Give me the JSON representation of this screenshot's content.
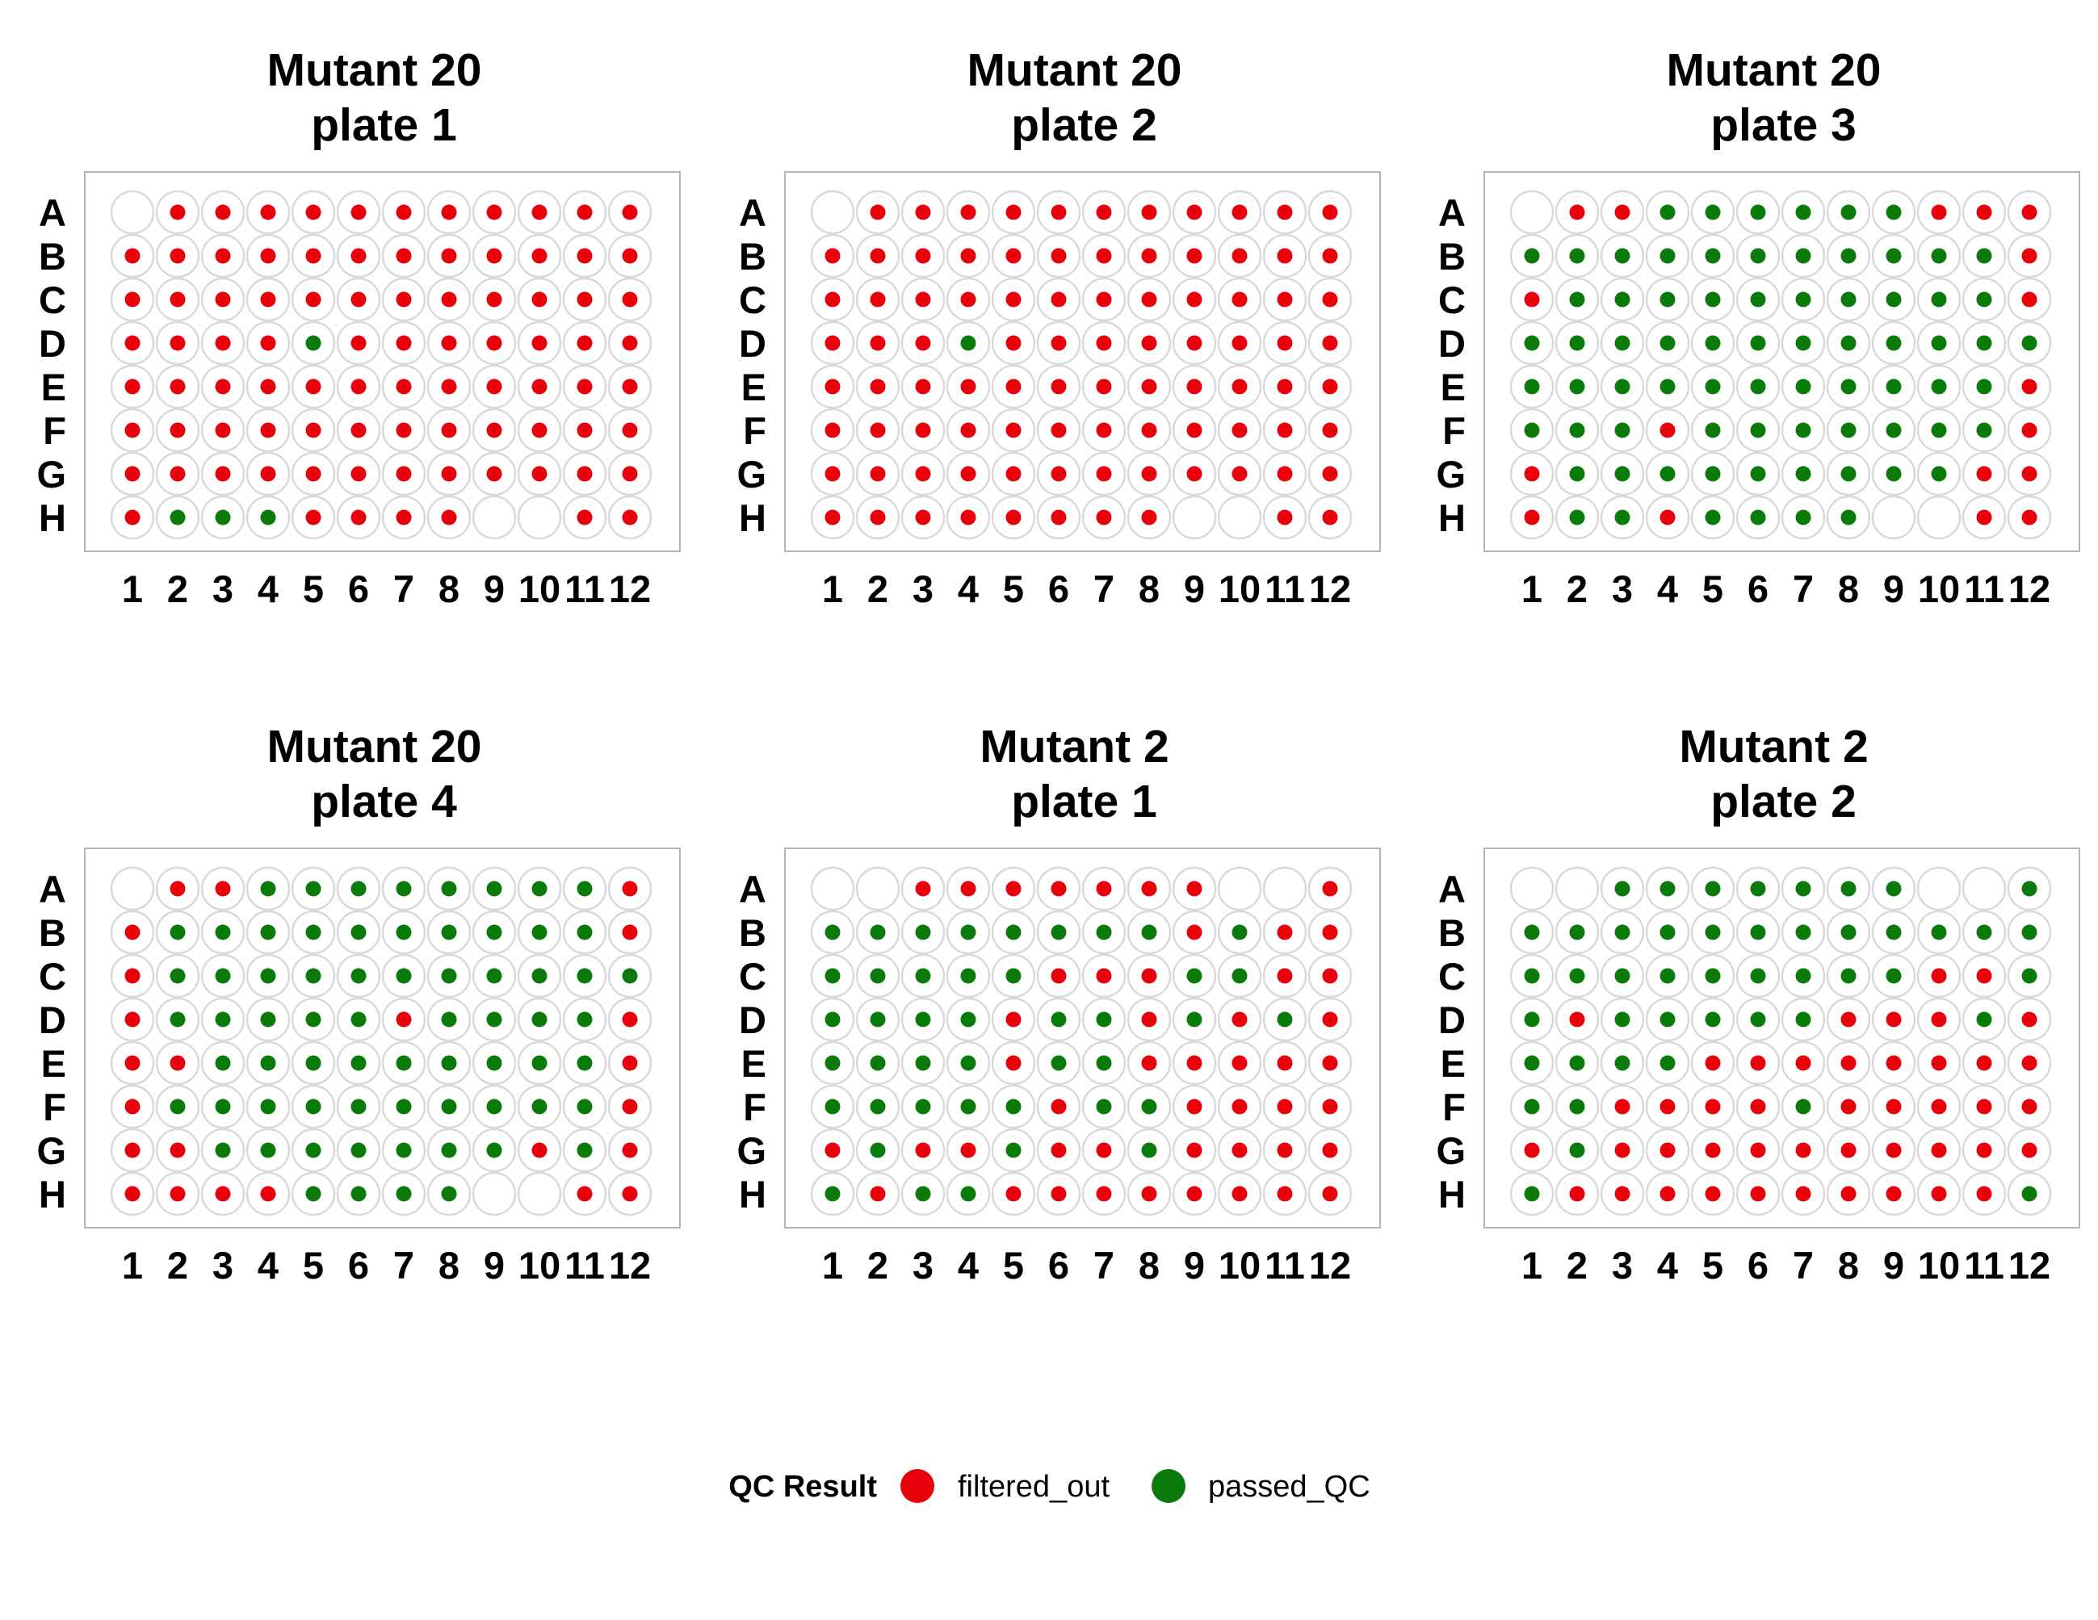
{
  "colors": {
    "filtered_out": "#e8000b",
    "passed_QC": "#0a7a0a",
    "well_outline": "#d9d9d9",
    "panel_border": "#b3b3b3"
  },
  "legend": {
    "title": "QC Result",
    "items": [
      {
        "key": "F",
        "label": "filtered_out"
      },
      {
        "key": "P",
        "label": "passed_QC"
      }
    ]
  },
  "chart_data": [
    {
      "type": "plate-map",
      "title_line1": "Mutant 20",
      "title_line2": "plate 1",
      "rows": [
        "A",
        "B",
        "C",
        "D",
        "E",
        "F",
        "G",
        "H"
      ],
      "columns": [
        "1",
        "2",
        "3",
        "4",
        "5",
        "6",
        "7",
        "8",
        "9",
        "10",
        "11",
        "12"
      ],
      "wells": [
        "_FFFFFFFFFFF",
        "FFFFFFFFFFFF",
        "FFFFFFFFFFFF",
        "FFFFPFFFFFFF",
        "FFFFFFFFFFFF",
        "FFFFFFFFFFFF",
        "FFFFFFFFFFFF",
        "FPPPFFFF__FF"
      ]
    },
    {
      "type": "plate-map",
      "title_line1": "Mutant 20",
      "title_line2": "plate 2",
      "rows": [
        "A",
        "B",
        "C",
        "D",
        "E",
        "F",
        "G",
        "H"
      ],
      "columns": [
        "1",
        "2",
        "3",
        "4",
        "5",
        "6",
        "7",
        "8",
        "9",
        "10",
        "11",
        "12"
      ],
      "wells": [
        "_FFFFFFFFFFF",
        "FFFFFFFFFFFF",
        "FFFFFFFFFFFF",
        "FFFPFFFFFFFF",
        "FFFFFFFFFFFF",
        "FFFFFFFFFFFF",
        "FFFFFFFFFFFF",
        "FFFFFFFF__FF"
      ]
    },
    {
      "type": "plate-map",
      "title_line1": "Mutant 20",
      "title_line2": "plate 3",
      "rows": [
        "A",
        "B",
        "C",
        "D",
        "E",
        "F",
        "G",
        "H"
      ],
      "columns": [
        "1",
        "2",
        "3",
        "4",
        "5",
        "6",
        "7",
        "8",
        "9",
        "10",
        "11",
        "12"
      ],
      "wells": [
        "_FFPPPPPPFFF",
        "PPPPPPPPPPPF",
        "FPPPPPPPPPPF",
        "PPPPPPPPPPPP",
        "PPPPPPPPPPPF",
        "PPPFPPPPPPPF",
        "FPPPPPPPPPFF",
        "FPPFPPPP__FF"
      ]
    },
    {
      "type": "plate-map",
      "title_line1": "Mutant 20",
      "title_line2": "plate 4",
      "rows": [
        "A",
        "B",
        "C",
        "D",
        "E",
        "F",
        "G",
        "H"
      ],
      "columns": [
        "1",
        "2",
        "3",
        "4",
        "5",
        "6",
        "7",
        "8",
        "9",
        "10",
        "11",
        "12"
      ],
      "wells": [
        "_FFPPPPPPPPF",
        "FPPPPPPPPPPF",
        "FPPPPPPPPPPP",
        "FPPPPPFPPPPF",
        "FFPPPPPPPPPF",
        "FPPPPPPPPPPF",
        "FFPPPPPPPFPF",
        "FFFFPPPP__FF"
      ]
    },
    {
      "type": "plate-map",
      "title_line1": "Mutant 2",
      "title_line2": "plate 1",
      "rows": [
        "A",
        "B",
        "C",
        "D",
        "E",
        "F",
        "G",
        "H"
      ],
      "columns": [
        "1",
        "2",
        "3",
        "4",
        "5",
        "6",
        "7",
        "8",
        "9",
        "10",
        "11",
        "12"
      ],
      "wells": [
        "__FFFFFFF__F",
        "PPPPPPPPFPFF",
        "PPPPPFFFPPFF",
        "PPPPFPPFPFPF",
        "PPPPFPPFFFFF",
        "PPPPPFPPFFFF",
        "FPFFPFFPFFFF",
        "PFPPFFFFFFFF"
      ]
    },
    {
      "type": "plate-map",
      "title_line1": "Mutant 2",
      "title_line2": "plate 2",
      "rows": [
        "A",
        "B",
        "C",
        "D",
        "E",
        "F",
        "G",
        "H"
      ],
      "columns": [
        "1",
        "2",
        "3",
        "4",
        "5",
        "6",
        "7",
        "8",
        "9",
        "10",
        "11",
        "12"
      ],
      "wells": [
        "__PPPPPPP__P",
        "PPPPPPPPPPPP",
        "PPPPPPPPPFFP",
        "PFPPPPPFFFPF",
        "PPPPFFFFFFFF",
        "PPFFFFPFFFFF",
        "FPFFFFFFFFFF",
        "PFFFFFFFFFFP"
      ]
    }
  ]
}
